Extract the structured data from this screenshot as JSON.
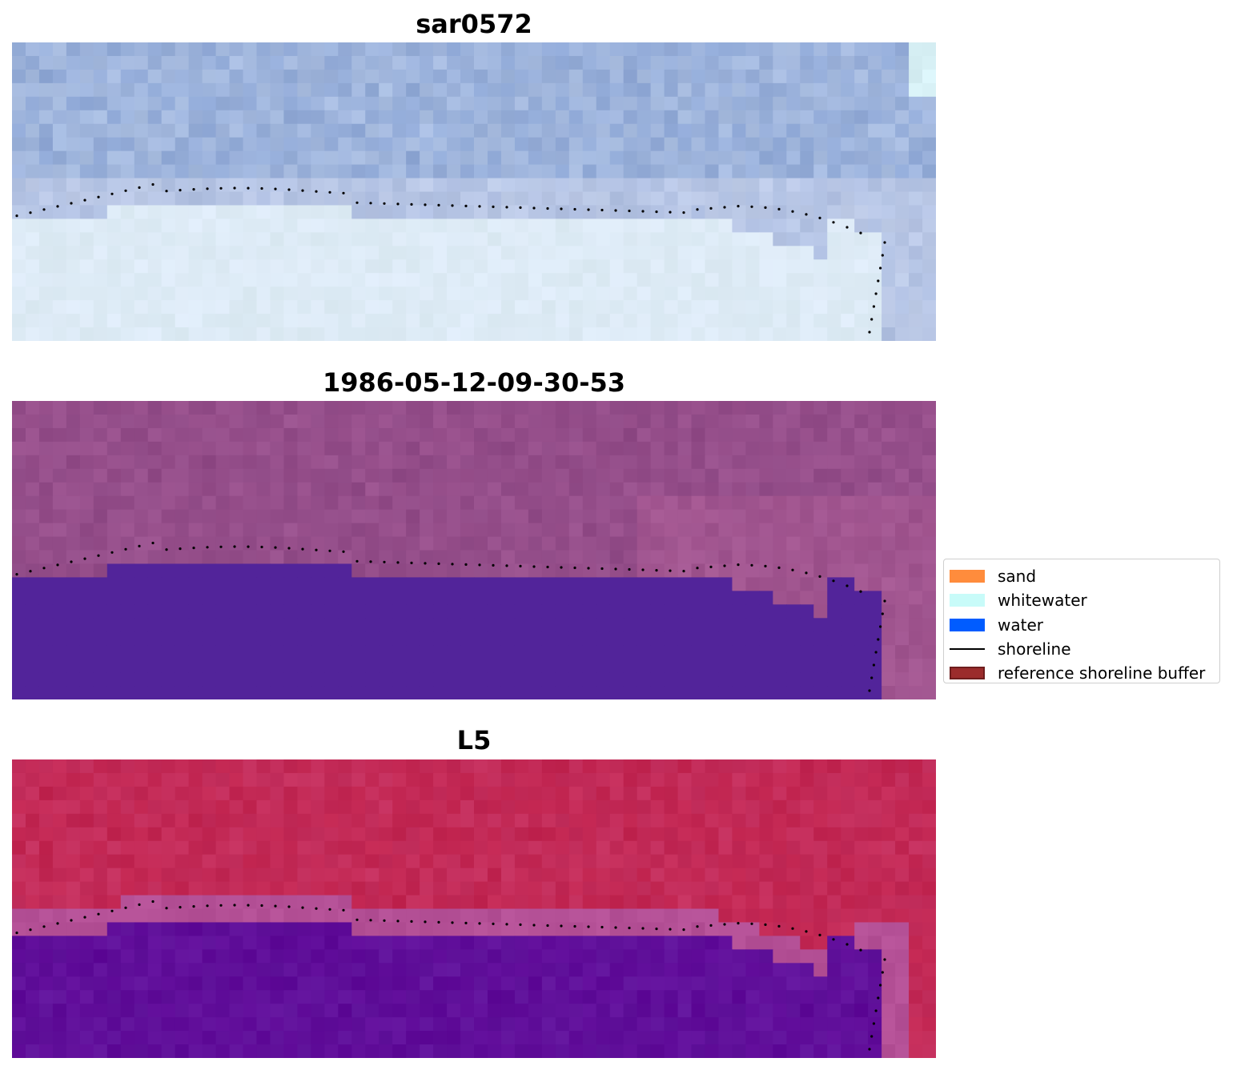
{
  "panels": [
    {
      "title": "sar0572",
      "palette": "sar"
    },
    {
      "title": "1986-05-12-09-30-53",
      "palette": "class"
    },
    {
      "title": "L5",
      "palette": "mndwi"
    }
  ],
  "legend": {
    "items": [
      {
        "label": "sand",
        "color": "#ff8c3c",
        "kind": "patch"
      },
      {
        "label": "whitewater",
        "color": "#c8fbf9",
        "kind": "patch"
      },
      {
        "label": "water",
        "color": "#005cff",
        "kind": "patch"
      },
      {
        "label": "shoreline",
        "color": "#000000",
        "kind": "line"
      },
      {
        "label": "reference shoreline buffer",
        "color": "#9b2c2c",
        "kind": "patch"
      }
    ]
  },
  "colors": {
    "sar_top": "#8fa8d6",
    "sar_bottom": "#dfeef7",
    "class_top": "#8f4a86",
    "class_water": "#52249a",
    "mndwi_top": "#c1244f",
    "mndwi_bottom": "#5f0a98",
    "shoreline_dots": "#000000"
  }
}
